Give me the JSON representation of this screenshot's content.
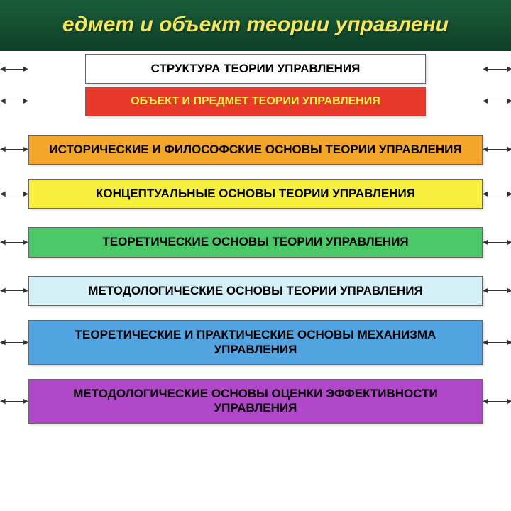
{
  "header": {
    "title": "едмет и объект теории управлени",
    "text_color": "#f5e65c",
    "bg_gradient_top": "#1a5d3a",
    "bg_gradient_bottom": "#0d4028"
  },
  "blocks": [
    {
      "text": "СТРУКТУРА ТЕОРИИ УПРАВЛЕНИЯ",
      "bg": "#ffffff",
      "fg": "#000000",
      "fontsize": 17,
      "narrow": true,
      "spacer_after": "sm"
    },
    {
      "text": "ОБЪЕКТ И ПРЕДМЕТ ТЕОРИИ УПРАВЛЕНИЯ",
      "bg": "#e8372b",
      "fg": "#fff54a",
      "fontsize": 16,
      "narrow": true,
      "spacer_after": "lg"
    },
    {
      "text": "ИСТОРИЧЕСКИЕ И ФИЛОСОФСКИЕ ОСНОВЫ ТЕОРИИ УПРАВЛЕНИЯ",
      "bg": "#f4a62a",
      "fg": "#000000",
      "fontsize": 17,
      "narrow": false,
      "spacer_after": "md"
    },
    {
      "text": "КОНЦЕПТУАЛЬНЫЕ ОСНОВЫ ТЕОРИИ УПРАВЛЕНИЯ",
      "bg": "#f7ef3e",
      "fg": "#000000",
      "fontsize": 17,
      "narrow": false,
      "spacer_after": "lg"
    },
    {
      "text": "ТЕОРЕТИЧЕСКИЕ ОСНОВЫ ТЕОРИИ УПРАВЛЕНИЯ",
      "bg": "#4bc968",
      "fg": "#000000",
      "fontsize": 17,
      "narrow": false,
      "spacer_after": "lg"
    },
    {
      "text": "МЕТОДОЛОГИЧЕСКИЕ ОСНОВЫ ТЕОРИИ УПРАВЛЕНИЯ",
      "bg": "#d4f0f7",
      "fg": "#000000",
      "fontsize": 17,
      "narrow": false,
      "spacer_after": "md"
    },
    {
      "text": "ТЕОРЕТИЧЕСКИЕ И ПРАКТИЧЕСКИЕ ОСНОВЫ МЕХАНИЗМА УПРАВЛЕНИЯ",
      "bg": "#51a4e0",
      "fg": "#000000",
      "fontsize": 17,
      "narrow": false,
      "spacer_after": "md"
    },
    {
      "text": "МЕТОДОЛОГИЧЕСКИЕ ОСНОВЫ ОЦЕНКИ ЭФФЕКТИВНОСТИ УПРАВЛЕНИЯ",
      "bg": "#b048c9",
      "fg": "#000000",
      "fontsize": 17,
      "narrow": false,
      "spacer_after": "sm"
    }
  ]
}
